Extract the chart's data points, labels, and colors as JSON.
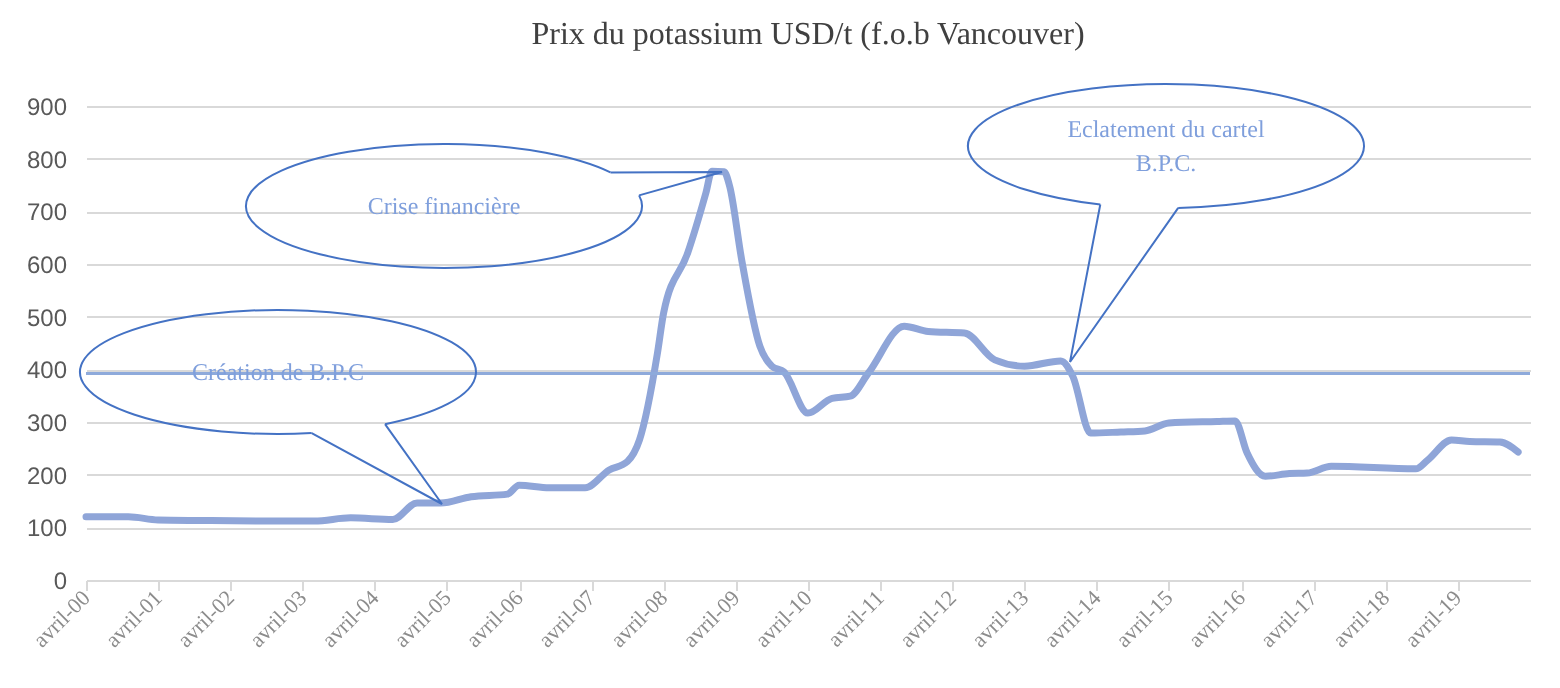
{
  "chart_data": {
    "type": "line",
    "title": "Prix du potassium USD/t (f.o.b Vancouver)",
    "x": [
      "2000-04",
      "2000-11",
      "2001-04",
      "2001-11",
      "2002-10",
      "2003-06",
      "2003-12",
      "2004-07",
      "2004-11",
      "2005-03",
      "2005-08",
      "2006-02",
      "2006-04",
      "2006-09",
      "2007-03",
      "2007-07",
      "2007-10",
      "2007-12",
      "2008-03",
      "2008-04",
      "2008-08",
      "2008-11",
      "2008-12",
      "2009-02",
      "2009-03",
      "2009-05",
      "2009-08",
      "2009-10",
      "2009-12",
      "2010-04",
      "2010-08",
      "2010-11",
      "2011-02",
      "2011-08",
      "2011-12",
      "2012-06",
      "2012-11",
      "2013-04",
      "2013-10",
      "2013-12",
      "2014-03",
      "2014-08",
      "2014-12",
      "2015-04",
      "2015-12",
      "2016-03",
      "2016-05",
      "2016-08",
      "2016-12",
      "2017-03",
      "2017-07",
      "2018-09",
      "2018-11",
      "2019-03",
      "2019-06",
      "2019-11",
      "2020-02"
    ],
    "series": [
      {
        "color": "#8fa5d8",
        "values": [
          120,
          120,
          114,
          113,
          112,
          112,
          118,
          115,
          146,
          146,
          158,
          163,
          180,
          175,
          175,
          209,
          225,
          266,
          431,
          507,
          621,
          735,
          776,
          775,
          748,
          608,
          444,
          406,
          395,
          317,
          345,
          349,
          393,
          482,
          472,
          469,
          418,
          406,
          416,
          387,
          279,
          281,
          283,
          298,
          301,
          302,
          241,
          197,
          202,
          203,
          216,
          211,
          228,
          266,
          263,
          262,
          243
        ]
      }
    ],
    "xlim": [
      "2000-04",
      "2020-04"
    ],
    "xticks": [
      {
        "value": "2000-04",
        "label": "avril-00"
      },
      {
        "value": "2001-04",
        "label": "avril-01"
      },
      {
        "value": "2002-04",
        "label": "avril-02"
      },
      {
        "value": "2003-04",
        "label": "avril-03"
      },
      {
        "value": "2004-04",
        "label": "avril-04"
      },
      {
        "value": "2005-04",
        "label": "avril-05"
      },
      {
        "value": "2006-04",
        "label": "avril-06"
      },
      {
        "value": "2007-04",
        "label": "avril-07"
      },
      {
        "value": "2008-04",
        "label": "avril-08"
      },
      {
        "value": "2009-04",
        "label": "avril-09"
      },
      {
        "value": "2010-04",
        "label": "avril-10"
      },
      {
        "value": "2011-04",
        "label": "avril-11"
      },
      {
        "value": "2012-04",
        "label": "avril-12"
      },
      {
        "value": "2013-04",
        "label": "avril-13"
      },
      {
        "value": "2014-04",
        "label": "avril-14"
      },
      {
        "value": "2015-04",
        "label": "avril-15"
      },
      {
        "value": "2016-04",
        "label": "avril-16"
      },
      {
        "value": "2017-04",
        "label": "avril-17"
      },
      {
        "value": "2018-04",
        "label": "avril-18"
      },
      {
        "value": "2019-04",
        "label": "avril-19"
      }
    ],
    "ylim": [
      0,
      900
    ],
    "yticks": [
      0,
      100,
      200,
      300,
      400,
      500,
      600,
      700,
      800,
      900
    ],
    "grid": "y",
    "line_style": "solid",
    "marker": "none",
    "ref_lines": [
      {
        "axis": "y",
        "value": 392,
        "color": "#8eaadb"
      }
    ],
    "annotations": [
      "Création  de B.P.C",
      "Crise financière",
      "Eclatement du cartel B.P.C."
    ]
  }
}
